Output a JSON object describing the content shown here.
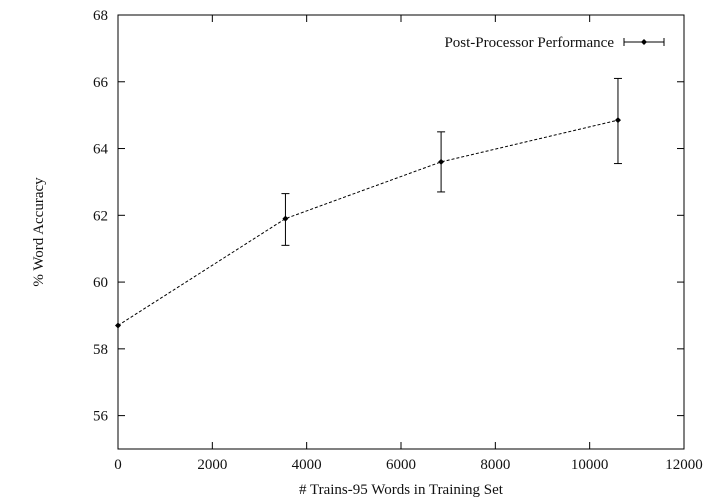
{
  "chart_data": {
    "type": "line",
    "title": "",
    "xlabel": "# Trains-95 Words in Training Set",
    "ylabel": "% Word Accuracy",
    "xlim": [
      0,
      12000
    ],
    "ylim": [
      55,
      68
    ],
    "xticks": [
      0,
      2000,
      4000,
      6000,
      8000,
      10000,
      12000
    ],
    "yticks": [
      56,
      58,
      60,
      62,
      64,
      66,
      68
    ],
    "grid": false,
    "legend_position": "top-right",
    "series": [
      {
        "name": "Post-Processor Performance",
        "color": "#000000",
        "line_style": "dashed",
        "marker": "diamond",
        "error_bars": true,
        "points": [
          {
            "x": 0,
            "y": 58.7,
            "ylow": 58.7,
            "yhigh": 58.7
          },
          {
            "x": 3550,
            "y": 61.9,
            "ylow": 61.1,
            "yhigh": 62.65
          },
          {
            "x": 6850,
            "y": 63.6,
            "ylow": 62.7,
            "yhigh": 64.5
          },
          {
            "x": 10600,
            "y": 64.85,
            "ylow": 63.55,
            "yhigh": 66.1
          }
        ]
      }
    ]
  }
}
